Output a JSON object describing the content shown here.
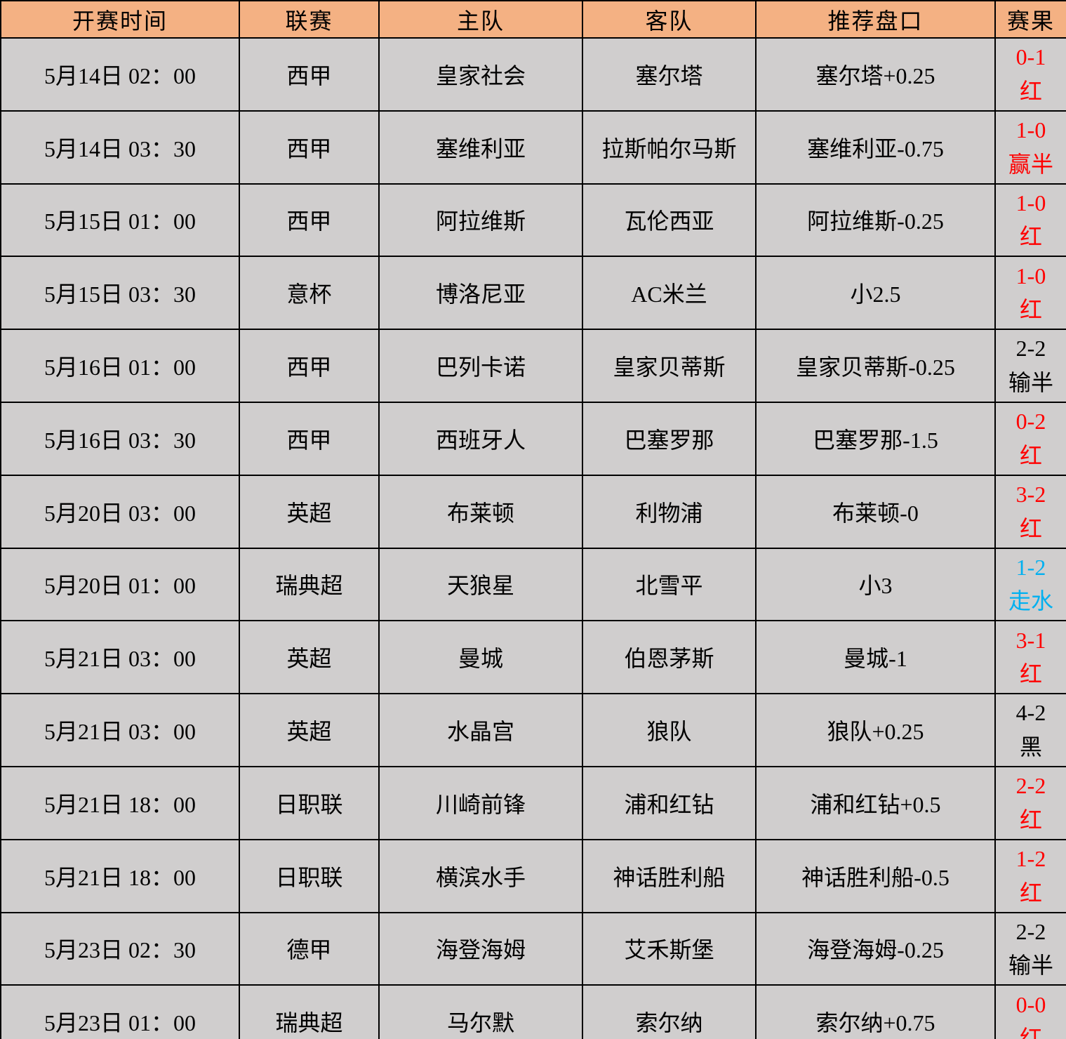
{
  "colors": {
    "header_bg": "#F4B183",
    "row_bg": "#D0CECE",
    "border": "#000000",
    "result_red": "#FF0000",
    "result_black": "#000000",
    "result_blue": "#00B0F0"
  },
  "chart_data": {
    "type": "table",
    "title": "",
    "columns": [
      "开赛时间",
      "联赛",
      "主队",
      "客队",
      "推荐盘口",
      "赛果"
    ],
    "rows": [
      {
        "time": "5月14日 02：00",
        "league": "西甲",
        "home": "皇家社会",
        "away": "塞尔塔",
        "handicap": "塞尔塔+0.25",
        "result_score": "0-1",
        "result_text": "红",
        "result_color": "red"
      },
      {
        "time": "5月14日 03：30",
        "league": "西甲",
        "home": "塞维利亚",
        "away": "拉斯帕尔马斯",
        "handicap": "塞维利亚-0.75",
        "result_score": "1-0",
        "result_text": "赢半",
        "result_color": "red"
      },
      {
        "time": "5月15日 01：00",
        "league": "西甲",
        "home": "阿拉维斯",
        "away": "瓦伦西亚",
        "handicap": "阿拉维斯-0.25",
        "result_score": "1-0",
        "result_text": "红",
        "result_color": "red"
      },
      {
        "time": "5月15日 03：30",
        "league": "意杯",
        "home": "博洛尼亚",
        "away": "AC米兰",
        "handicap": "小2.5",
        "result_score": "1-0",
        "result_text": "红",
        "result_color": "red"
      },
      {
        "time": "5月16日 01：00",
        "league": "西甲",
        "home": "巴列卡诺",
        "away": "皇家贝蒂斯",
        "handicap": "皇家贝蒂斯-0.25",
        "result_score": "2-2",
        "result_text": "输半",
        "result_color": "black"
      },
      {
        "time": "5月16日 03：30",
        "league": "西甲",
        "home": "西班牙人",
        "away": "巴塞罗那",
        "handicap": "巴塞罗那-1.5",
        "result_score": "0-2",
        "result_text": "红",
        "result_color": "red"
      },
      {
        "time": "5月20日 03：00",
        "league": "英超",
        "home": "布莱顿",
        "away": "利物浦",
        "handicap": "布莱顿-0",
        "result_score": "3-2",
        "result_text": "红",
        "result_color": "red"
      },
      {
        "time": "5月20日 01：00",
        "league": "瑞典超",
        "home": "天狼星",
        "away": "北雪平",
        "handicap": "小3",
        "result_score": "1-2",
        "result_text": "走水",
        "result_color": "blue"
      },
      {
        "time": "5月21日 03：00",
        "league": "英超",
        "home": "曼城",
        "away": "伯恩茅斯",
        "handicap": "曼城-1",
        "result_score": "3-1",
        "result_text": "红",
        "result_color": "red"
      },
      {
        "time": "5月21日 03：00",
        "league": "英超",
        "home": "水晶宫",
        "away": "狼队",
        "handicap": "狼队+0.25",
        "result_score": "4-2",
        "result_text": "黑",
        "result_color": "black"
      },
      {
        "time": "5月21日 18：00",
        "league": "日职联",
        "home": "川崎前锋",
        "away": "浦和红钻",
        "handicap": "浦和红钻+0.5",
        "result_score": "2-2",
        "result_text": "红",
        "result_color": "red"
      },
      {
        "time": "5月21日 18：00",
        "league": "日职联",
        "home": "横滨水手",
        "away": "神话胜利船",
        "handicap": "神话胜利船-0.5",
        "result_score": "1-2",
        "result_text": "红",
        "result_color": "red"
      },
      {
        "time": "5月23日 02：30",
        "league": "德甲",
        "home": "海登海姆",
        "away": "艾禾斯堡",
        "handicap": "海登海姆-0.25",
        "result_score": "2-2",
        "result_text": "输半",
        "result_color": "black"
      },
      {
        "time": "5月23日 01：00",
        "league": "瑞典超",
        "home": "马尔默",
        "away": "索尔纳",
        "handicap": "索尔纳+0.75",
        "result_score": "0-0",
        "result_text": "红",
        "result_color": "red"
      }
    ]
  }
}
